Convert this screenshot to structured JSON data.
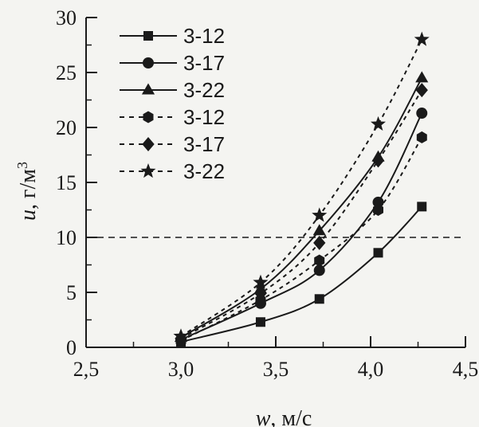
{
  "chart_data": {
    "type": "line",
    "xlabel": "w, м/с",
    "ylabel": "u, г/м³",
    "xlabel_var": "w",
    "xlabel_unit": ", м/с",
    "ylabel_var": "u",
    "ylabel_unit": ", г/м",
    "ylabel_sup": "3",
    "xlim": [
      2.5,
      4.5
    ],
    "ylim": [
      0,
      30
    ],
    "xticks": [
      "2,5",
      "3,0",
      "3,5",
      "4,0",
      "4,5"
    ],
    "xtick_values": [
      2.5,
      3.0,
      3.5,
      4.0,
      4.5
    ],
    "yticks": [
      "0",
      "5",
      "10",
      "15",
      "20",
      "25",
      "30"
    ],
    "ytick_values": [
      0,
      5,
      10,
      15,
      20,
      25,
      30
    ],
    "reference_line": {
      "y": 10,
      "style": "dashed"
    },
    "legend_position": "top-left",
    "grid": false,
    "line_color": "#1a1a1a",
    "x": [
      3.0,
      3.42,
      3.73,
      4.04,
      4.27
    ],
    "series": [
      {
        "name": "3-12",
        "marker": "square",
        "style": "solid",
        "values": [
          0.5,
          2.3,
          4.4,
          8.6,
          12.8
        ]
      },
      {
        "name": "3-17",
        "marker": "circle",
        "style": "solid",
        "values": [
          0.7,
          4.0,
          7.0,
          13.2,
          21.3
        ]
      },
      {
        "name": "3-22",
        "marker": "triangle",
        "style": "solid",
        "values": [
          0.9,
          5.3,
          10.6,
          17.3,
          24.5
        ]
      },
      {
        "name": "3-12",
        "marker": "hexagon",
        "style": "dotted",
        "values": [
          0.6,
          4.3,
          7.9,
          12.5,
          19.1
        ]
      },
      {
        "name": "3-17",
        "marker": "diamond",
        "style": "dotted",
        "values": [
          0.8,
          4.9,
          9.5,
          17.0,
          23.4
        ]
      },
      {
        "name": "3-22",
        "marker": "star",
        "style": "dotted",
        "values": [
          1.0,
          5.9,
          12.0,
          20.3,
          28.0
        ]
      }
    ]
  }
}
